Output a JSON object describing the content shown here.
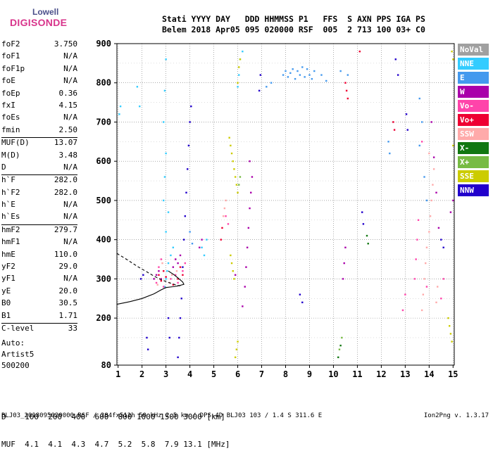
{
  "logo": {
    "line1": "Lowell",
    "line2": "DIGISONDE"
  },
  "header": {
    "line1": "Stati YYYY DAY   DDD HHMMSS P1   FFS  S AXN PPS IGA PS",
    "line2": "Belem 2018 Apr05 095 020000 RSF  005  2 713 100 03+ C0"
  },
  "params_groups": [
    [
      {
        "k": "foF2",
        "v": "3.750"
      },
      {
        "k": "foF1",
        "v": "N/A"
      },
      {
        "k": "foF1p",
        "v": "N/A"
      },
      {
        "k": "foE",
        "v": "N/A"
      },
      {
        "k": "foEp",
        "v": "0.36"
      },
      {
        "k": "fxI",
        "v": "4.15"
      },
      {
        "k": "foEs",
        "v": "N/A"
      },
      {
        "k": "fmin",
        "v": "2.50"
      }
    ],
    [
      {
        "k": "MUF(D)",
        "v": "13.07"
      },
      {
        "k": "M(D)",
        "v": "3.48"
      },
      {
        "k": "D",
        "v": "N/A"
      }
    ],
    [
      {
        "k": "h`F",
        "v": "282.0"
      },
      {
        "k": "h`F2",
        "v": "282.0"
      },
      {
        "k": "h`E",
        "v": "N/A"
      },
      {
        "k": "h`Es",
        "v": "N/A"
      }
    ],
    [
      {
        "k": "hmF2",
        "v": "279.7"
      },
      {
        "k": "hmF1",
        "v": "N/A"
      },
      {
        "k": "hmE",
        "v": "110.0"
      },
      {
        "k": "yF2",
        "v": "29.0"
      },
      {
        "k": "yF1",
        "v": "N/A"
      },
      {
        "k": "yE",
        "v": "20.0"
      },
      {
        "k": "B0",
        "v": "30.5"
      },
      {
        "k": "B1",
        "v": "1.71"
      }
    ],
    [
      {
        "k": "C-level",
        "v": "33"
      }
    ]
  ],
  "auto": {
    "line1": "Auto:",
    "line2": "Artist5",
    "line3": "500200"
  },
  "legend": [
    {
      "label": "NoVal",
      "color": "#a0a0a0"
    },
    {
      "label": "NNE",
      "color": "#33ccff"
    },
    {
      "label": "E",
      "color": "#4499ee"
    },
    {
      "label": "W",
      "color": "#aa00aa"
    },
    {
      "label": "Vo-",
      "color": "#ff44aa"
    },
    {
      "label": "Vo+",
      "color": "#ee0033"
    },
    {
      "label": "SSW",
      "color": "#ffaaaa"
    },
    {
      "label": "X-",
      "color": "#117711"
    },
    {
      "label": "X+",
      "color": "#77bb44"
    },
    {
      "label": "SSE",
      "color": "#cccc00"
    },
    {
      "label": "NNW",
      "color": "#2200cc"
    }
  ],
  "d_table": {
    "line1": "D    100  200  400  600  800 1000 1500 3000 [km]",
    "line2": "MUF  4.1  4.1  4.3  4.7  5.2  5.8  7.9 13.1 [MHz]"
  },
  "footer": "BLJ03_2018095020000.RSF / 284fx512h 50 kHz 2.5 km / DPS-4D BLJ03 103 / 1.4 S 311.6 E",
  "version": "Ion2Png v. 1.3.17",
  "chart_data": {
    "type": "scatter",
    "title": "",
    "xlabel": "",
    "ylabel": "",
    "xlim": [
      0.95,
      15.05
    ],
    "ylim": [
      80,
      900
    ],
    "x_ticks": [
      1,
      2,
      3,
      4,
      5,
      6,
      7,
      8,
      9,
      10,
      11,
      12,
      13,
      14,
      15
    ],
    "y_ticks": [
      80,
      200,
      300,
      400,
      500,
      600,
      700,
      800,
      900
    ],
    "grid": true,
    "series": [
      {
        "name": "NNE",
        "color": "#33ccff",
        "points": [
          [
            2.95,
            280
          ],
          [
            3.0,
            300
          ],
          [
            3.05,
            320
          ],
          [
            3.1,
            340
          ],
          [
            3.2,
            360
          ],
          [
            3.3,
            380
          ],
          [
            3.0,
            420
          ],
          [
            3.1,
            470
          ],
          [
            2.9,
            500
          ],
          [
            2.95,
            560
          ],
          [
            3.0,
            620
          ],
          [
            2.9,
            700
          ],
          [
            2.95,
            780
          ],
          [
            3.0,
            860
          ],
          [
            1.8,
            790
          ],
          [
            1.9,
            740
          ],
          [
            4.6,
            360
          ],
          [
            4.5,
            380
          ],
          [
            4.7,
            400
          ],
          [
            6.0,
            790
          ],
          [
            6.05,
            820
          ],
          [
            6.1,
            860
          ],
          [
            6.2,
            880
          ],
          [
            1.1,
            740
          ],
          [
            1.05,
            720
          ]
        ]
      },
      {
        "name": "E",
        "color": "#4499ee",
        "points": [
          [
            7.9,
            820
          ],
          [
            8.0,
            830
          ],
          [
            8.1,
            815
          ],
          [
            8.2,
            825
          ],
          [
            8.3,
            835
          ],
          [
            8.4,
            810
          ],
          [
            8.5,
            830
          ],
          [
            8.6,
            820
          ],
          [
            8.7,
            840
          ],
          [
            8.8,
            815
          ],
          [
            8.9,
            835
          ],
          [
            9.0,
            820
          ],
          [
            9.1,
            810
          ],
          [
            9.2,
            830
          ],
          [
            7.4,
            800
          ],
          [
            7.2,
            790
          ],
          [
            9.5,
            820
          ],
          [
            9.7,
            805
          ],
          [
            10.3,
            830
          ],
          [
            10.6,
            820
          ],
          [
            13.6,
            760
          ],
          [
            13.7,
            700
          ],
          [
            13.6,
            640
          ],
          [
            12.3,
            650
          ],
          [
            12.35,
            620
          ],
          [
            13.8,
            560
          ],
          [
            13.9,
            500
          ],
          [
            4.0,
            420
          ],
          [
            4.1,
            390
          ]
        ]
      },
      {
        "name": "W",
        "color": "#aa00aa",
        "points": [
          [
            2.5,
            300
          ],
          [
            2.6,
            310
          ],
          [
            2.7,
            320
          ],
          [
            2.8,
            300
          ],
          [
            3.3,
            330
          ],
          [
            3.4,
            350
          ],
          [
            3.5,
            340
          ],
          [
            3.6,
            360
          ],
          [
            4.4,
            380
          ],
          [
            4.5,
            400
          ],
          [
            6.2,
            230
          ],
          [
            6.3,
            280
          ],
          [
            6.35,
            330
          ],
          [
            6.4,
            380
          ],
          [
            6.45,
            430
          ],
          [
            6.5,
            480
          ],
          [
            6.55,
            520
          ],
          [
            6.6,
            560
          ],
          [
            6.5,
            600
          ],
          [
            5.9,
            310
          ],
          [
            10.4,
            300
          ],
          [
            10.45,
            340
          ],
          [
            10.5,
            380
          ],
          [
            14.1,
            700
          ],
          [
            14.2,
            610
          ],
          [
            14.3,
            520
          ],
          [
            14.4,
            430
          ],
          [
            15.0,
            500
          ],
          [
            14.9,
            470
          ]
        ]
      },
      {
        "name": "Vo-",
        "color": "#ff44aa",
        "points": [
          [
            2.6,
            290
          ],
          [
            2.7,
            330
          ],
          [
            2.8,
            350
          ],
          [
            2.9,
            280
          ],
          [
            3.2,
            300
          ],
          [
            3.4,
            310
          ],
          [
            3.5,
            290
          ],
          [
            3.7,
            320
          ],
          [
            3.8,
            340
          ],
          [
            5.5,
            460
          ],
          [
            5.6,
            440
          ],
          [
            13.4,
            300
          ],
          [
            13.45,
            350
          ],
          [
            13.5,
            400
          ],
          [
            13.55,
            450
          ],
          [
            13.7,
            650
          ],
          [
            13.9,
            280
          ],
          [
            14.5,
            250
          ],
          [
            14.6,
            300
          ],
          [
            12.9,
            220
          ],
          [
            13.0,
            260
          ]
        ]
      },
      {
        "name": "Vo+",
        "color": "#ee0033",
        "points": [
          [
            2.7,
            310
          ],
          [
            2.8,
            295
          ],
          [
            2.9,
            320
          ],
          [
            3.0,
            305
          ],
          [
            3.3,
            285
          ],
          [
            3.5,
            300
          ],
          [
            3.6,
            330
          ],
          [
            3.7,
            310
          ],
          [
            10.5,
            800
          ],
          [
            10.55,
            780
          ],
          [
            10.6,
            760
          ],
          [
            11.1,
            880
          ],
          [
            12.5,
            700
          ],
          [
            12.55,
            680
          ],
          [
            5.3,
            400
          ],
          [
            5.35,
            430
          ]
        ]
      },
      {
        "name": "SSW",
        "color": "#ffaaaa",
        "points": [
          [
            2.65,
            285
          ],
          [
            2.75,
            300
          ],
          [
            2.85,
            340
          ],
          [
            3.15,
            290
          ],
          [
            3.25,
            310
          ],
          [
            3.45,
            320
          ],
          [
            5.4,
            460
          ],
          [
            5.45,
            480
          ],
          [
            5.5,
            500
          ],
          [
            13.7,
            220
          ],
          [
            13.75,
            260
          ],
          [
            13.8,
            300
          ],
          [
            13.85,
            340
          ],
          [
            13.9,
            380
          ],
          [
            14.0,
            420
          ],
          [
            14.05,
            460
          ],
          [
            14.1,
            500
          ],
          [
            14.15,
            540
          ],
          [
            14.2,
            580
          ],
          [
            14.0,
            620
          ],
          [
            14.3,
            240
          ],
          [
            14.35,
            280
          ]
        ]
      },
      {
        "name": "X-",
        "color": "#117711",
        "points": [
          [
            10.2,
            100
          ],
          [
            10.3,
            130
          ],
          [
            11.4,
            410
          ],
          [
            11.45,
            390
          ]
        ]
      },
      {
        "name": "X+",
        "color": "#77bb44",
        "points": [
          [
            6.05,
            540
          ],
          [
            6.1,
            560
          ],
          [
            10.25,
            120
          ],
          [
            10.35,
            150
          ]
        ]
      },
      {
        "name": "SSE",
        "color": "#cccc00",
        "points": [
          [
            5.65,
            660
          ],
          [
            5.7,
            640
          ],
          [
            5.75,
            620
          ],
          [
            5.8,
            600
          ],
          [
            5.85,
            580
          ],
          [
            5.9,
            560
          ],
          [
            5.95,
            540
          ],
          [
            6.0,
            520
          ],
          [
            5.7,
            360
          ],
          [
            5.75,
            340
          ],
          [
            5.8,
            320
          ],
          [
            5.85,
            300
          ],
          [
            6.0,
            800
          ],
          [
            6.05,
            840
          ],
          [
            6.1,
            860
          ],
          [
            5.9,
            100
          ],
          [
            5.95,
            120
          ],
          [
            6.0,
            140
          ],
          [
            14.8,
            200
          ],
          [
            14.85,
            180
          ],
          [
            14.9,
            160
          ],
          [
            14.95,
            140
          ],
          [
            15.0,
            860
          ],
          [
            15.0,
            640
          ],
          [
            14.95,
            880
          ]
        ]
      },
      {
        "name": "NNW",
        "color": "#2200cc",
        "points": [
          [
            3.5,
            100
          ],
          [
            3.55,
            150
          ],
          [
            3.6,
            200
          ],
          [
            3.65,
            250
          ],
          [
            3.7,
            330
          ],
          [
            3.75,
            400
          ],
          [
            3.8,
            460
          ],
          [
            3.85,
            520
          ],
          [
            3.9,
            580
          ],
          [
            3.95,
            640
          ],
          [
            4.0,
            700
          ],
          [
            4.05,
            740
          ],
          [
            3.1,
            200
          ],
          [
            3.15,
            150
          ],
          [
            2.2,
            150
          ],
          [
            2.25,
            120
          ],
          [
            1.95,
            300
          ],
          [
            2.05,
            310
          ],
          [
            6.95,
            820
          ],
          [
            6.9,
            780
          ],
          [
            12.6,
            860
          ],
          [
            12.7,
            820
          ],
          [
            13.05,
            720
          ],
          [
            13.1,
            680
          ],
          [
            14.5,
            400
          ],
          [
            14.6,
            380
          ],
          [
            11.2,
            470
          ],
          [
            11.25,
            440
          ],
          [
            8.6,
            260
          ],
          [
            8.7,
            240
          ]
        ]
      }
    ],
    "traces": [
      {
        "name": "profile_solid",
        "style": "solid",
        "points": [
          [
            0.95,
            235
          ],
          [
            1.5,
            242
          ],
          [
            2.0,
            250
          ],
          [
            2.5,
            262
          ],
          [
            2.8,
            272
          ],
          [
            3.0,
            278
          ],
          [
            3.3,
            280
          ],
          [
            3.5,
            282
          ],
          [
            3.75,
            286
          ],
          [
            3.7,
            292
          ],
          [
            3.55,
            300
          ],
          [
            3.35,
            310
          ],
          [
            3.1,
            320
          ]
        ]
      },
      {
        "name": "profile_dashed",
        "style": "dashed",
        "points": [
          [
            0.95,
            365
          ],
          [
            1.4,
            348
          ],
          [
            1.8,
            332
          ],
          [
            2.2,
            318
          ],
          [
            2.5,
            307
          ],
          [
            2.8,
            298
          ],
          [
            3.1,
            291
          ],
          [
            3.4,
            285
          ],
          [
            3.6,
            282
          ]
        ]
      }
    ]
  }
}
